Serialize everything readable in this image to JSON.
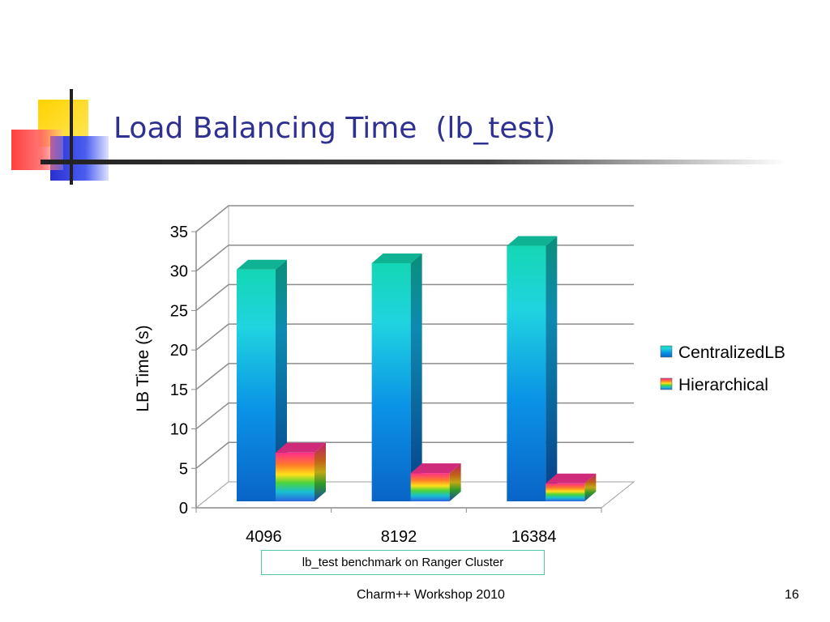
{
  "slide": {
    "title": "Load Balancing Time  (lb_test)",
    "caption": "lb_test benchmark on Ranger Cluster",
    "footer": "Charm++ Workshop 2010",
    "page_number": "16"
  },
  "chart_data": {
    "type": "bar",
    "title": "",
    "xlabel": "",
    "ylabel": "LB Time (s)",
    "categories": [
      "4096",
      "8192",
      "16384"
    ],
    "series": [
      {
        "name": "CentralizedLB",
        "values": [
          30.2,
          31.0,
          33.2
        ]
      },
      {
        "name": "Hierarchical",
        "values": [
          7.0,
          4.4,
          3.1
        ]
      }
    ],
    "ylim": [
      0,
      35
    ],
    "yticks": [
      "0",
      "5",
      "10",
      "15",
      "20",
      "25",
      "30",
      "35"
    ],
    "grid": true,
    "three_d": true,
    "legend_position": "right",
    "colors": {
      "centralized": "#1aa3e0",
      "hierarchical": "rainbow"
    }
  }
}
